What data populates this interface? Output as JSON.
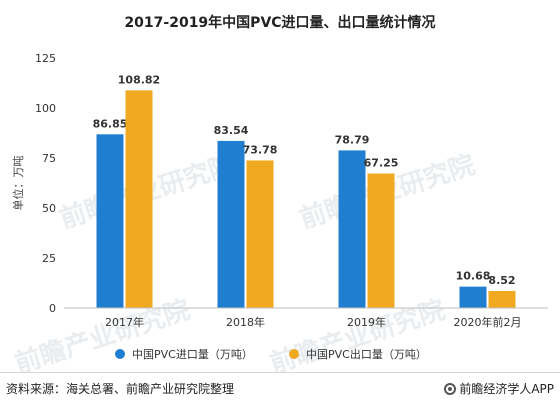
{
  "chart_data": {
    "type": "bar",
    "title": "2017-2019年中国PVC进口量、出口量统计情况",
    "ylabel": "单位：万吨",
    "ylim": [
      0,
      125
    ],
    "yticks": [
      0,
      25,
      50,
      75,
      100,
      125
    ],
    "categories": [
      "2017年",
      "2018年",
      "2019年",
      "2020年前2月"
    ],
    "series": [
      {
        "name": "中国PVC进口量（万吨）",
        "color": "#1f7ecf",
        "values": [
          86.85,
          83.54,
          78.79,
          10.68
        ]
      },
      {
        "name": "中国PVC出口量（万吨）",
        "color": "#f2a922",
        "values": [
          108.82,
          73.78,
          67.25,
          8.52
        ]
      }
    ],
    "legend_position": "bottom",
    "grid": false
  },
  "footer": {
    "source": "资料来源：海关总署、前瞻产业研究院整理",
    "brand": "前瞻经济学人APP"
  },
  "watermark": {
    "text": "前瞻产业研究院"
  }
}
